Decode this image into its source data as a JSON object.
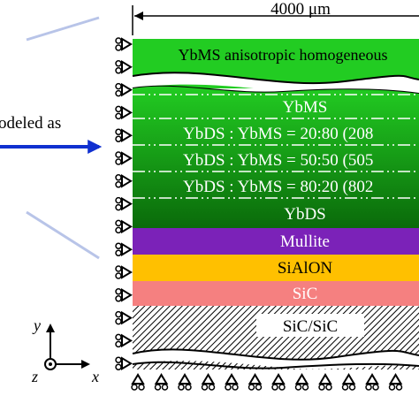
{
  "dimension": "4000 μm",
  "annotation": "odeled as",
  "layers": [
    {
      "label": "YbMS anisotropic homogeneous"
    },
    {
      "label": "YbMS"
    },
    {
      "label": "YbDS : YbMS = 20:80 (208"
    },
    {
      "label": "YbDS : YbMS = 50:50 (505"
    },
    {
      "label": "YbDS : YbMS = 80:20 (802"
    },
    {
      "label": "YbDS"
    },
    {
      "label": "Mullite"
    },
    {
      "label": "SiAlON"
    },
    {
      "label": "SiC"
    },
    {
      "label": "SiC/SiC"
    }
  ],
  "axes": {
    "y": "y",
    "z": "z",
    "x": "x"
  }
}
